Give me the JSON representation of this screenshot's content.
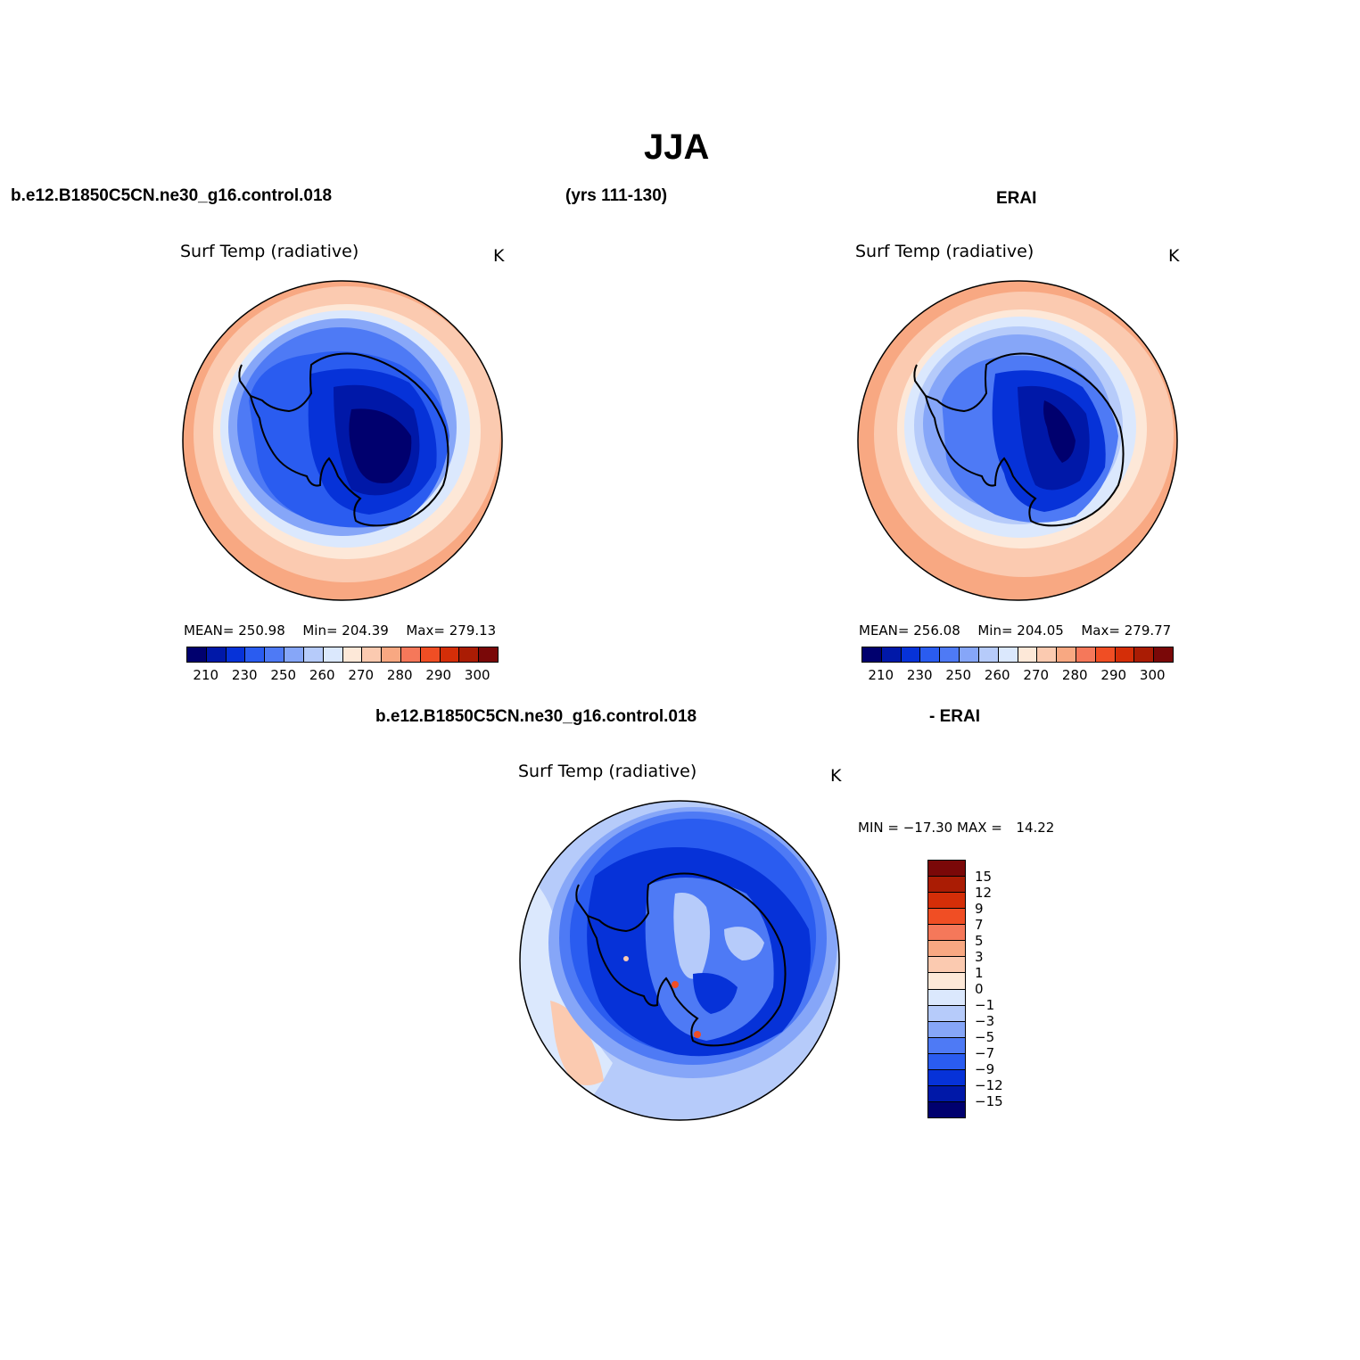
{
  "figure": {
    "title": "JJA",
    "case_name": "b.e12.B1850C5CN.ne30_g16.control.018",
    "years": "(yrs 111-130)",
    "obs_name": "ERAI",
    "diff_case": "b.e12.B1850C5CN.ne30_g16.control.018",
    "diff_obs": "- ERAI"
  },
  "panels": {
    "model": {
      "field": "Surf Temp (radiative)",
      "units": "K",
      "mean_label": "MEAN=",
      "mean": "250.98",
      "min_label": "Min=",
      "min": "204.39",
      "max_label": "Max=",
      "max": "279.13"
    },
    "obs": {
      "field": "Surf Temp (radiative)",
      "units": "K",
      "mean_label": "MEAN=",
      "mean": "256.08",
      "min_label": "Min=",
      "min": "204.05",
      "max_label": "Max=",
      "max": "279.77"
    },
    "diff": {
      "field": "Surf Temp (radiative)",
      "units": "K",
      "min_label": "MIN =",
      "min": "−17.30",
      "max_label": "MAX =",
      "max": "14.22"
    }
  },
  "colorbars": {
    "abs_ticks": [
      "210",
      "230",
      "250",
      "260",
      "270",
      "280",
      "290",
      "300"
    ],
    "abs_colors": [
      "#00006e",
      "#0018a8",
      "#0632d8",
      "#2a5cf0",
      "#4e7af5",
      "#86a6f8",
      "#b6cbfa",
      "#dbe8fd",
      "#fde8d8",
      "#fbcab0",
      "#f8a882",
      "#f5785a",
      "#f04e24",
      "#d42e08",
      "#aa1c04",
      "#7a0808"
    ],
    "diff_ticks": [
      "15",
      "12",
      "9",
      "7",
      "5",
      "3",
      "1",
      "0",
      "−1",
      "−3",
      "−5",
      "−7",
      "−9",
      "−12",
      "−15"
    ],
    "diff_colors": [
      "#7a0808",
      "#aa1c04",
      "#d42e08",
      "#f04e24",
      "#f5785a",
      "#f8a882",
      "#fbcab0",
      "#fde8d8",
      "#dbe8fd",
      "#b6cbfa",
      "#86a6f8",
      "#4e7af5",
      "#2a5cf0",
      "#0632d8",
      "#0018a8",
      "#00006e"
    ]
  },
  "icons": {
    "map_projection": "polar-stereographic-south"
  }
}
